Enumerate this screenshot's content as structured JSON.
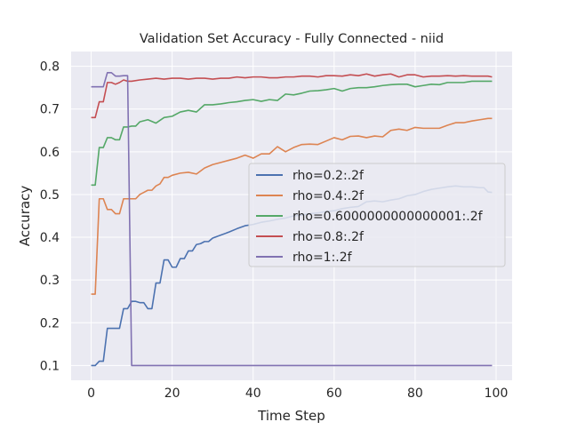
{
  "chart_data": {
    "type": "line",
    "title": "Validation Set Accuracy - Fully Connected - niid",
    "xlabel": "Time Step",
    "ylabel": "Accuracy",
    "xlim": [
      -4.95,
      103.95
    ],
    "ylim": [
      0.0655,
      0.8345
    ],
    "xticks": [
      0,
      20,
      40,
      60,
      80,
      100
    ],
    "yticks": [
      0.1,
      0.2,
      0.3,
      0.4,
      0.5,
      0.6,
      0.7,
      0.8
    ],
    "xtick_labels": [
      "0",
      "20",
      "40",
      "60",
      "80",
      "100"
    ],
    "ytick_labels": [
      "0.1",
      "0.2",
      "0.3",
      "0.4",
      "0.5",
      "0.6",
      "0.7",
      "0.8"
    ],
    "grid": true,
    "legend_position": "center-right",
    "background": "#eaeaf2",
    "series": [
      {
        "name": "rho=0.2:.2f",
        "color": "#4c72b0",
        "points": [
          [
            0,
            0.1
          ],
          [
            1,
            0.1
          ],
          [
            2,
            0.11
          ],
          [
            3,
            0.11
          ],
          [
            4,
            0.187
          ],
          [
            5,
            0.187
          ],
          [
            6,
            0.187
          ],
          [
            7,
            0.187
          ],
          [
            8,
            0.233
          ],
          [
            9,
            0.233
          ],
          [
            10,
            0.25
          ],
          [
            11,
            0.25
          ],
          [
            12,
            0.247
          ],
          [
            13,
            0.247
          ],
          [
            14,
            0.233
          ],
          [
            15,
            0.233
          ],
          [
            16,
            0.293
          ],
          [
            17,
            0.293
          ],
          [
            18,
            0.347
          ],
          [
            19,
            0.347
          ],
          [
            20,
            0.33
          ],
          [
            21,
            0.33
          ],
          [
            22,
            0.35
          ],
          [
            23,
            0.35
          ],
          [
            24,
            0.368
          ],
          [
            25,
            0.368
          ],
          [
            26,
            0.383
          ],
          [
            27,
            0.385
          ],
          [
            28,
            0.39
          ],
          [
            29,
            0.39
          ],
          [
            30,
            0.398
          ],
          [
            32,
            0.405
          ],
          [
            34,
            0.412
          ],
          [
            36,
            0.42
          ],
          [
            38,
            0.427
          ],
          [
            40,
            0.43
          ],
          [
            42,
            0.435
          ],
          [
            44,
            0.438
          ],
          [
            46,
            0.442
          ],
          [
            48,
            0.445
          ],
          [
            50,
            0.45
          ],
          [
            52,
            0.452
          ],
          [
            54,
            0.455
          ],
          [
            56,
            0.457
          ],
          [
            58,
            0.46
          ],
          [
            60,
            0.462
          ],
          [
            62,
            0.467
          ],
          [
            64,
            0.47
          ],
          [
            66,
            0.472
          ],
          [
            68,
            0.483
          ],
          [
            70,
            0.485
          ],
          [
            72,
            0.483
          ],
          [
            74,
            0.487
          ],
          [
            76,
            0.49
          ],
          [
            78,
            0.497
          ],
          [
            80,
            0.5
          ],
          [
            82,
            0.507
          ],
          [
            84,
            0.512
          ],
          [
            86,
            0.515
          ],
          [
            88,
            0.518
          ],
          [
            90,
            0.52
          ],
          [
            92,
            0.518
          ],
          [
            94,
            0.518
          ],
          [
            96,
            0.516
          ],
          [
            97,
            0.516
          ],
          [
            98,
            0.506
          ],
          [
            99,
            0.505
          ]
        ]
      },
      {
        "name": "rho=0.4:.2f",
        "color": "#dd8452",
        "points": [
          [
            0,
            0.267
          ],
          [
            1,
            0.267
          ],
          [
            2,
            0.49
          ],
          [
            3,
            0.49
          ],
          [
            4,
            0.465
          ],
          [
            5,
            0.465
          ],
          [
            6,
            0.455
          ],
          [
            7,
            0.455
          ],
          [
            8,
            0.49
          ],
          [
            9,
            0.49
          ],
          [
            10,
            0.49
          ],
          [
            11,
            0.49
          ],
          [
            12,
            0.5
          ],
          [
            13,
            0.505
          ],
          [
            14,
            0.51
          ],
          [
            15,
            0.51
          ],
          [
            16,
            0.52
          ],
          [
            17,
            0.525
          ],
          [
            18,
            0.54
          ],
          [
            19,
            0.54
          ],
          [
            20,
            0.545
          ],
          [
            22,
            0.55
          ],
          [
            24,
            0.552
          ],
          [
            26,
            0.548
          ],
          [
            28,
            0.562
          ],
          [
            30,
            0.57
          ],
          [
            32,
            0.575
          ],
          [
            34,
            0.58
          ],
          [
            36,
            0.585
          ],
          [
            38,
            0.592
          ],
          [
            40,
            0.585
          ],
          [
            42,
            0.595
          ],
          [
            44,
            0.595
          ],
          [
            46,
            0.612
          ],
          [
            48,
            0.6
          ],
          [
            50,
            0.61
          ],
          [
            52,
            0.617
          ],
          [
            54,
            0.618
          ],
          [
            56,
            0.617
          ],
          [
            58,
            0.625
          ],
          [
            60,
            0.633
          ],
          [
            62,
            0.628
          ],
          [
            64,
            0.636
          ],
          [
            66,
            0.637
          ],
          [
            68,
            0.633
          ],
          [
            70,
            0.637
          ],
          [
            72,
            0.635
          ],
          [
            74,
            0.65
          ],
          [
            76,
            0.653
          ],
          [
            78,
            0.65
          ],
          [
            80,
            0.657
          ],
          [
            82,
            0.655
          ],
          [
            84,
            0.655
          ],
          [
            86,
            0.655
          ],
          [
            88,
            0.662
          ],
          [
            90,
            0.668
          ],
          [
            92,
            0.668
          ],
          [
            94,
            0.672
          ],
          [
            96,
            0.675
          ],
          [
            98,
            0.678
          ],
          [
            99,
            0.678
          ]
        ]
      },
      {
        "name": "rho=0.6000000000000001:.2f",
        "color": "#55a868",
        "points": [
          [
            0,
            0.522
          ],
          [
            1,
            0.522
          ],
          [
            2,
            0.61
          ],
          [
            3,
            0.61
          ],
          [
            4,
            0.633
          ],
          [
            5,
            0.633
          ],
          [
            6,
            0.628
          ],
          [
            7,
            0.628
          ],
          [
            8,
            0.658
          ],
          [
            9,
            0.658
          ],
          [
            10,
            0.66
          ],
          [
            11,
            0.66
          ],
          [
            12,
            0.67
          ],
          [
            14,
            0.675
          ],
          [
            16,
            0.667
          ],
          [
            18,
            0.68
          ],
          [
            20,
            0.683
          ],
          [
            22,
            0.693
          ],
          [
            24,
            0.697
          ],
          [
            26,
            0.693
          ],
          [
            28,
            0.71
          ],
          [
            30,
            0.71
          ],
          [
            32,
            0.712
          ],
          [
            34,
            0.715
          ],
          [
            36,
            0.717
          ],
          [
            38,
            0.72
          ],
          [
            40,
            0.722
          ],
          [
            42,
            0.718
          ],
          [
            44,
            0.722
          ],
          [
            46,
            0.72
          ],
          [
            48,
            0.735
          ],
          [
            50,
            0.733
          ],
          [
            52,
            0.737
          ],
          [
            54,
            0.742
          ],
          [
            56,
            0.743
          ],
          [
            58,
            0.745
          ],
          [
            60,
            0.748
          ],
          [
            62,
            0.742
          ],
          [
            64,
            0.748
          ],
          [
            66,
            0.75
          ],
          [
            68,
            0.75
          ],
          [
            70,
            0.752
          ],
          [
            72,
            0.755
          ],
          [
            74,
            0.757
          ],
          [
            76,
            0.758
          ],
          [
            78,
            0.758
          ],
          [
            80,
            0.752
          ],
          [
            82,
            0.755
          ],
          [
            84,
            0.758
          ],
          [
            86,
            0.757
          ],
          [
            88,
            0.762
          ],
          [
            90,
            0.762
          ],
          [
            92,
            0.762
          ],
          [
            94,
            0.765
          ],
          [
            96,
            0.765
          ],
          [
            98,
            0.765
          ],
          [
            99,
            0.765
          ]
        ]
      },
      {
        "name": "rho=0.8:.2f",
        "color": "#c44e52",
        "points": [
          [
            0,
            0.68
          ],
          [
            1,
            0.68
          ],
          [
            2,
            0.717
          ],
          [
            3,
            0.717
          ],
          [
            4,
            0.762
          ],
          [
            5,
            0.762
          ],
          [
            6,
            0.758
          ],
          [
            7,
            0.762
          ],
          [
            8,
            0.768
          ],
          [
            9,
            0.765
          ],
          [
            10,
            0.765
          ],
          [
            12,
            0.768
          ],
          [
            14,
            0.77
          ],
          [
            16,
            0.772
          ],
          [
            18,
            0.77
          ],
          [
            20,
            0.772
          ],
          [
            22,
            0.772
          ],
          [
            24,
            0.77
          ],
          [
            26,
            0.772
          ],
          [
            28,
            0.772
          ],
          [
            30,
            0.77
          ],
          [
            32,
            0.772
          ],
          [
            34,
            0.772
          ],
          [
            36,
            0.775
          ],
          [
            38,
            0.773
          ],
          [
            40,
            0.775
          ],
          [
            42,
            0.775
          ],
          [
            44,
            0.773
          ],
          [
            46,
            0.773
          ],
          [
            48,
            0.775
          ],
          [
            50,
            0.775
          ],
          [
            52,
            0.777
          ],
          [
            54,
            0.777
          ],
          [
            56,
            0.775
          ],
          [
            58,
            0.778
          ],
          [
            60,
            0.778
          ],
          [
            62,
            0.777
          ],
          [
            64,
            0.78
          ],
          [
            66,
            0.778
          ],
          [
            68,
            0.782
          ],
          [
            70,
            0.777
          ],
          [
            72,
            0.78
          ],
          [
            74,
            0.782
          ],
          [
            76,
            0.775
          ],
          [
            78,
            0.78
          ],
          [
            80,
            0.78
          ],
          [
            82,
            0.775
          ],
          [
            84,
            0.777
          ],
          [
            86,
            0.777
          ],
          [
            88,
            0.778
          ],
          [
            90,
            0.777
          ],
          [
            92,
            0.778
          ],
          [
            94,
            0.777
          ],
          [
            96,
            0.777
          ],
          [
            98,
            0.777
          ],
          [
            99,
            0.775
          ]
        ]
      },
      {
        "name": "rho=1:.2f",
        "color": "#8172b2",
        "points": [
          [
            0,
            0.752
          ],
          [
            1,
            0.752
          ],
          [
            2,
            0.752
          ],
          [
            3,
            0.752
          ],
          [
            4,
            0.785
          ],
          [
            5,
            0.785
          ],
          [
            6,
            0.777
          ],
          [
            7,
            0.777
          ],
          [
            8,
            0.778
          ],
          [
            9,
            0.778
          ],
          [
            10,
            0.1
          ],
          [
            11,
            0.1
          ],
          [
            20,
            0.1
          ],
          [
            30,
            0.1
          ],
          [
            40,
            0.1
          ],
          [
            50,
            0.1
          ],
          [
            60,
            0.1
          ],
          [
            70,
            0.1
          ],
          [
            80,
            0.1
          ],
          [
            90,
            0.1
          ],
          [
            99,
            0.1
          ]
        ]
      }
    ]
  }
}
